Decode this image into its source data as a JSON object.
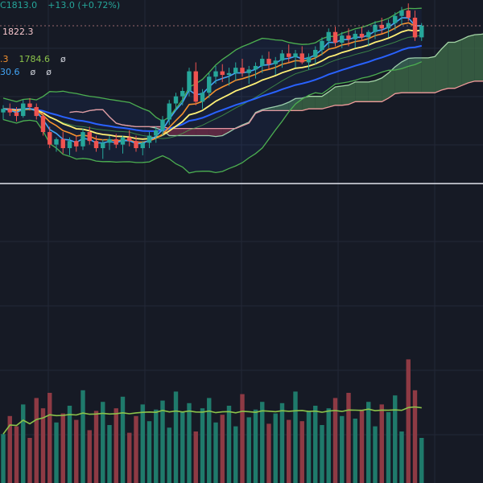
{
  "legend": {
    "close_label": "C",
    "close_value": "1813.0",
    "change": "+13.0",
    "change_pct": "(+0.72%)",
    "line2_prefix_value": ".3",
    "line2_value": "1784.6",
    "line2_symbol": "ø",
    "line3_value": "30.6",
    "line3_symbol_a": "ø",
    "line3_symbol_b": "ø"
  },
  "price_tag": "1822.3",
  "colors": {
    "background": "#161a25",
    "up": "#26a69a",
    "down": "#ef5350",
    "vol_up": "#1f7a6b",
    "vol_down": "#8e3a44",
    "bollinger": "#4caf50",
    "ma_short": "#42a5f5",
    "ma_mid": "#f5922f",
    "ma_long": "#fff176",
    "ma_longest": "#2962ff",
    "cloud_span_a": "#a5d6a7",
    "cloud_span_b": "#ef9a9a",
    "cloud_bull": "#3f6e4a",
    "cloud_bear": "#7a2a3a",
    "volume_ma": "#8bc34a",
    "separator": "#e0e3eb"
  },
  "chart_data": {
    "type": "candlestick",
    "price_range": [
      1640,
      1840
    ],
    "candles": [
      [
        1716,
        1724,
        1708,
        1720
      ],
      [
        1720,
        1726,
        1712,
        1716
      ],
      [
        1716,
        1722,
        1706,
        1712
      ],
      [
        1712,
        1730,
        1710,
        1726
      ],
      [
        1726,
        1732,
        1718,
        1722
      ],
      [
        1722,
        1726,
        1708,
        1712
      ],
      [
        1712,
        1716,
        1690,
        1694
      ],
      [
        1694,
        1700,
        1676,
        1680
      ],
      [
        1680,
        1688,
        1672,
        1686
      ],
      [
        1686,
        1694,
        1670,
        1676
      ],
      [
        1676,
        1688,
        1668,
        1684
      ],
      [
        1684,
        1690,
        1672,
        1678
      ],
      [
        1678,
        1698,
        1674,
        1694
      ],
      [
        1694,
        1700,
        1680,
        1684
      ],
      [
        1684,
        1690,
        1672,
        1676
      ],
      [
        1676,
        1686,
        1664,
        1682
      ],
      [
        1682,
        1690,
        1674,
        1686
      ],
      [
        1686,
        1692,
        1676,
        1680
      ],
      [
        1680,
        1690,
        1670,
        1688
      ],
      [
        1688,
        1696,
        1678,
        1684
      ],
      [
        1684,
        1690,
        1672,
        1676
      ],
      [
        1676,
        1684,
        1668,
        1682
      ],
      [
        1682,
        1694,
        1676,
        1690
      ],
      [
        1690,
        1700,
        1682,
        1696
      ],
      [
        1696,
        1712,
        1690,
        1708
      ],
      [
        1708,
        1730,
        1702,
        1726
      ],
      [
        1726,
        1738,
        1718,
        1734
      ],
      [
        1734,
        1744,
        1724,
        1740
      ],
      [
        1740,
        1766,
        1734,
        1762
      ],
      [
        1762,
        1772,
        1724,
        1728
      ],
      [
        1728,
        1742,
        1720,
        1738
      ],
      [
        1738,
        1760,
        1732,
        1756
      ],
      [
        1756,
        1768,
        1748,
        1762
      ],
      [
        1762,
        1770,
        1750,
        1758
      ],
      [
        1758,
        1766,
        1746,
        1760
      ],
      [
        1760,
        1772,
        1752,
        1766
      ],
      [
        1766,
        1776,
        1756,
        1760
      ],
      [
        1760,
        1768,
        1748,
        1764
      ],
      [
        1764,
        1772,
        1754,
        1768
      ],
      [
        1768,
        1780,
        1760,
        1776
      ],
      [
        1776,
        1784,
        1764,
        1770
      ],
      [
        1770,
        1778,
        1758,
        1774
      ],
      [
        1774,
        1786,
        1766,
        1782
      ],
      [
        1782,
        1792,
        1772,
        1778
      ],
      [
        1778,
        1786,
        1766,
        1782
      ],
      [
        1782,
        1790,
        1770,
        1772
      ],
      [
        1772,
        1782,
        1764,
        1778
      ],
      [
        1778,
        1790,
        1770,
        1786
      ],
      [
        1786,
        1800,
        1780,
        1796
      ],
      [
        1796,
        1810,
        1788,
        1806
      ],
      [
        1806,
        1812,
        1790,
        1794
      ],
      [
        1794,
        1806,
        1788,
        1802
      ],
      [
        1802,
        1810,
        1790,
        1798
      ],
      [
        1798,
        1808,
        1788,
        1804
      ],
      [
        1804,
        1812,
        1796,
        1800
      ],
      [
        1800,
        1808,
        1790,
        1806
      ],
      [
        1806,
        1818,
        1798,
        1814
      ],
      [
        1814,
        1822,
        1804,
        1810
      ],
      [
        1810,
        1820,
        1800,
        1816
      ],
      [
        1816,
        1828,
        1808,
        1824
      ],
      [
        1824,
        1834,
        1814,
        1830
      ],
      [
        1830,
        1838,
        1818,
        1822
      ],
      [
        1822,
        1830,
        1796,
        1800
      ],
      [
        1800,
        1816,
        1796,
        1813
      ]
    ],
    "volume": [
      38,
      52,
      44,
      61,
      35,
      66,
      58,
      70,
      47,
      54,
      60,
      49,
      72,
      41,
      56,
      63,
      45,
      58,
      67,
      39,
      52,
      61,
      48,
      57,
      64,
      43,
      71,
      55,
      62,
      40,
      58,
      66,
      47,
      53,
      60,
      44,
      69,
      51,
      57,
      63,
      46,
      54,
      62,
      49,
      71,
      48,
      56,
      60,
      45,
      58,
      66,
      52,
      70,
      50,
      57,
      63,
      44,
      61,
      55,
      68,
      40,
      96,
      72,
      35
    ],
    "volume_range": [
      0,
      100
    ],
    "ma_window": 20,
    "bollinger_stddev": 2,
    "ichimoku_periods": [
      9,
      26,
      52
    ]
  }
}
